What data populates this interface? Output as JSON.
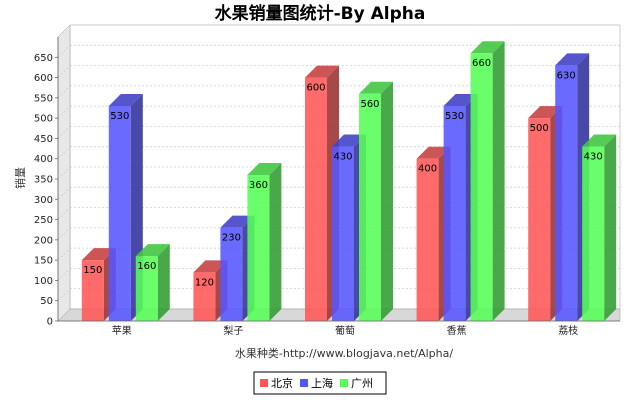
{
  "chart_data": {
    "type": "bar",
    "title": "水果销量图统计-By Alpha",
    "xlabel": "水果种类-http://www.blogjava.net/Alpha/",
    "ylabel": "销量",
    "categories": [
      "苹果",
      "梨子",
      "葡萄",
      "香蕉",
      "荔枝"
    ],
    "series": [
      {
        "name": "北京",
        "values": [
          150,
          120,
          600,
          400,
          500
        ],
        "color": "#ff5555"
      },
      {
        "name": "上海",
        "values": [
          530,
          230,
          430,
          530,
          630
        ],
        "color": "#5555ff"
      },
      {
        "name": "广州",
        "values": [
          160,
          360,
          560,
          660,
          430
        ],
        "color": "#55ff55"
      }
    ],
    "ylim": [
      0,
      700
    ],
    "yticks": [
      0,
      50,
      100,
      150,
      200,
      250,
      300,
      350,
      400,
      450,
      500,
      550,
      600,
      650
    ],
    "grid": true,
    "legend_position": "bottom",
    "three_d": true
  }
}
